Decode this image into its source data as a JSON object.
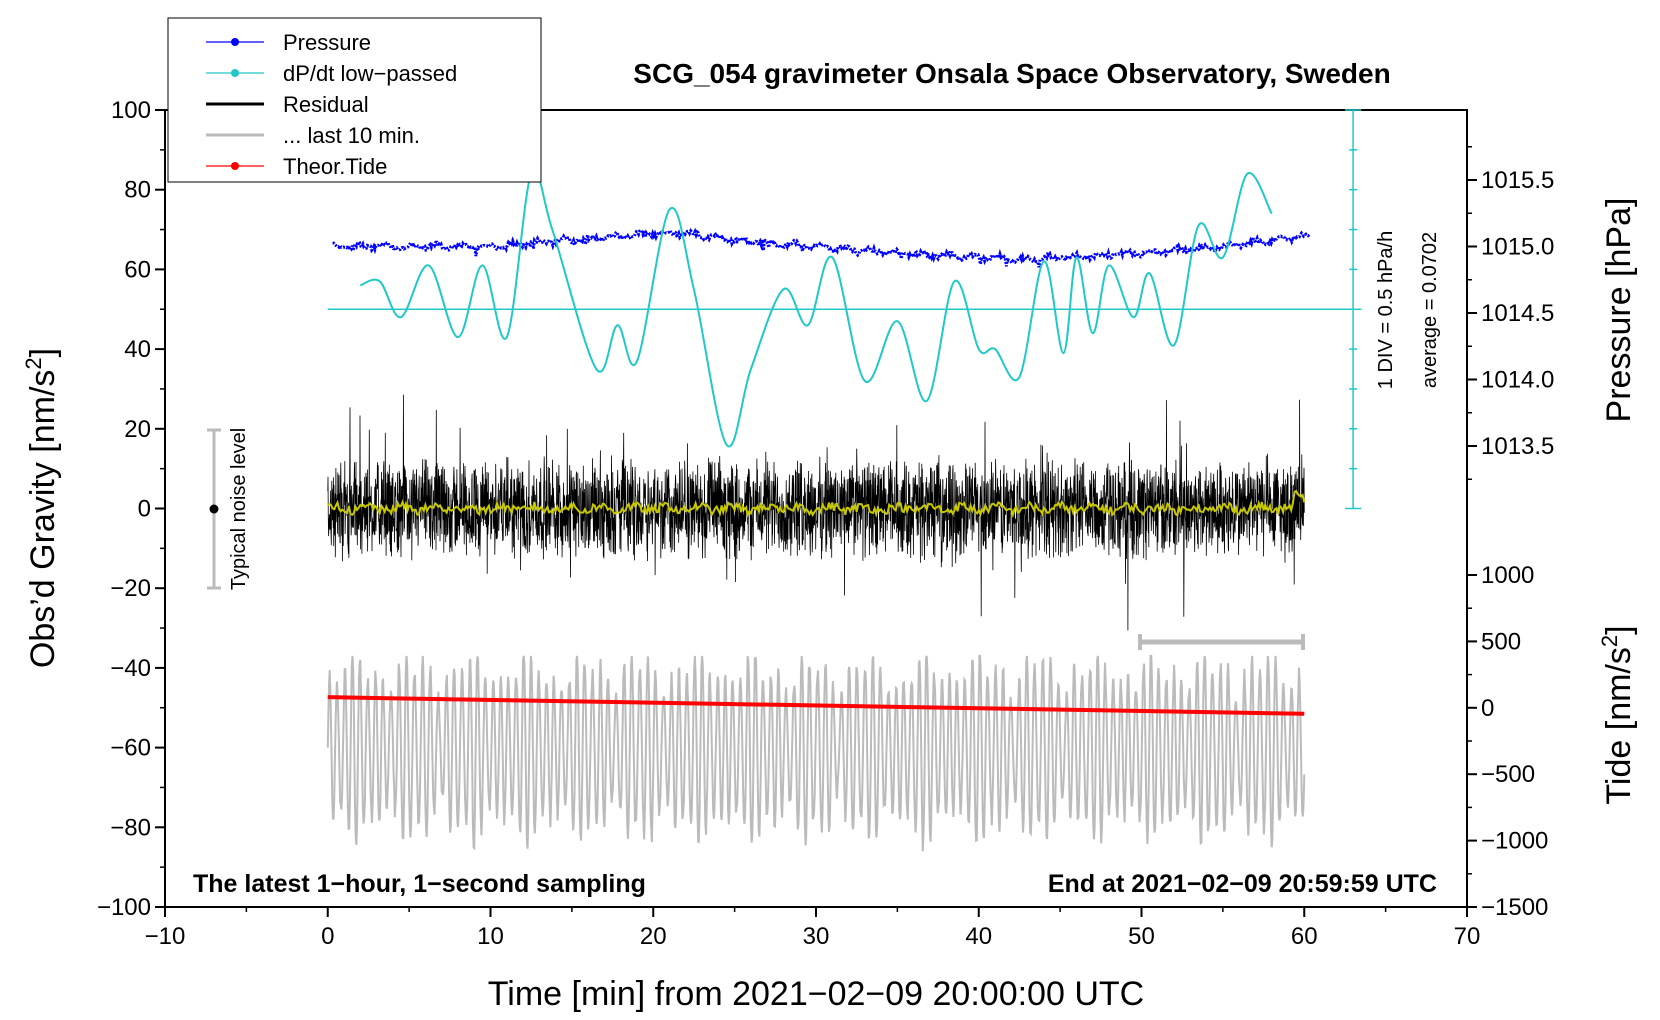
{
  "chart_data": {
    "type": "line",
    "title": "SCG_054 gravimeter Onsala Space Observatory, Sweden",
    "xlabel": "Time [min] from 2021−02−09 20:00:00 UTC",
    "ylabel_left": "Obs’d Gravity [nm/s²]",
    "ylabel_left_base": "Obs’d Gravity [nm/s",
    "ylabel_right_pressure": "Pressure [hPa]",
    "ylabel_right_tide": "Tide [nm/s²]",
    "ylabel_right_tide_base": "Tide [nm/s",
    "superscript": "2",
    "xlim": [
      -10,
      70
    ],
    "ylim_left": [
      -100,
      100
    ],
    "pressure_lim": [
      1013.5,
      1015.5
    ],
    "tide_lim": [
      -1500,
      1000
    ],
    "x_ticks": [
      "−10",
      "0",
      "10",
      "20",
      "30",
      "40",
      "50",
      "60",
      "70"
    ],
    "x_tick_values": [
      -10,
      0,
      10,
      20,
      30,
      40,
      50,
      60,
      70
    ],
    "y_ticks_left": [
      "100",
      "80",
      "60",
      "40",
      "20",
      "0",
      "−20",
      "−40",
      "−60",
      "−80",
      "−100"
    ],
    "y_tick_values_left": [
      100,
      80,
      60,
      40,
      20,
      0,
      -20,
      -40,
      -60,
      -80,
      -100
    ],
    "pressure_ticks": [
      "1015.5",
      "1015.0",
      "1014.5",
      "1014.0",
      "1013.5"
    ],
    "pressure_tick_values": [
      1015.5,
      1015.0,
      1014.5,
      1014.0,
      1013.5
    ],
    "tide_ticks": [
      "1000",
      "500",
      "0",
      "−500",
      "−1000",
      "−1500"
    ],
    "tide_tick_values": [
      1000,
      500,
      0,
      -500,
      -1000,
      -1500
    ],
    "legend": [
      {
        "label": "Pressure",
        "color": "#0000ff",
        "marker": "dot"
      },
      {
        "label": "dP/dt low−passed",
        "color": "#20c8c8",
        "marker": "dot"
      },
      {
        "label": "Residual",
        "color": "#000000",
        "marker": "none"
      },
      {
        "label": "... last 10 min.",
        "color": "#bbbbbb",
        "marker": "none"
      },
      {
        "label": "Theor.Tide",
        "color": "#ff0000",
        "marker": "dot"
      }
    ],
    "annotations": {
      "noise_label": "Typical noise level",
      "noise_range": [
        -20,
        20
      ],
      "noise_x": -7,
      "div_label": "1 DIV = 0.5 hPa/h",
      "average_label": "average = 0.0702",
      "div_axis_x": 63,
      "bottom_left": "The latest 1−hour, 1−second sampling",
      "bottom_right": "End at 2021−02−09 20:59:59 UTC",
      "last10_bar": [
        50,
        60
      ]
    },
    "series": [
      {
        "name": "Pressure",
        "unit": "hPa",
        "x": [
          0,
          5,
          10,
          15,
          20,
          22,
          25,
          30,
          35,
          40,
          43,
          45,
          50,
          55,
          58,
          60
        ],
        "values": [
          1015.0,
          1015.0,
          1015.0,
          1015.05,
          1015.1,
          1015.1,
          1015.05,
          1015.0,
          1014.95,
          1014.92,
          1014.9,
          1014.92,
          1014.95,
          1015.0,
          1015.05,
          1015.08
        ]
      },
      {
        "name": "dP/dt low−passed",
        "unit": "gravity-axis units",
        "x": [
          2,
          3.2,
          4.5,
          6.2,
          8,
          9.5,
          11,
          12.5,
          13.8,
          16.5,
          17.8,
          19,
          21,
          22.5,
          24.5,
          26,
          28,
          29.5,
          31,
          33,
          35,
          36.8,
          38.5,
          40,
          41,
          42.5,
          44,
          45.2,
          46,
          47,
          48,
          49.5,
          50.5,
          52,
          53.5,
          55,
          56.5,
          58
        ],
        "values": [
          56,
          57,
          48,
          61,
          43,
          61,
          43,
          84,
          70,
          35,
          46,
          37,
          75,
          55,
          16,
          35,
          55,
          46,
          63,
          32,
          47,
          27,
          57,
          40,
          40,
          33,
          62,
          39,
          63,
          44,
          61,
          48,
          59,
          41,
          71,
          63,
          84,
          74
        ]
      },
      {
        "name": "Residual",
        "unit": "nm/s²",
        "x_range": [
          0,
          60
        ],
        "center": 0,
        "typical_amplitude": 10,
        "peak_range": [
          -33,
          31
        ]
      },
      {
        "name": "Residual smoothed",
        "unit": "nm/s²",
        "x_range": [
          0,
          60
        ],
        "center": 0
      },
      {
        "name": "... last 10 min.",
        "unit": "nm/s²",
        "x_range": [
          0,
          60
        ],
        "center": -60,
        "amplitude_range": [
          -88,
          -37
        ]
      },
      {
        "name": "Theor.Tide",
        "unit": "nm/s²",
        "x": [
          0,
          60
        ],
        "values": [
          80,
          -45
        ]
      }
    ]
  }
}
